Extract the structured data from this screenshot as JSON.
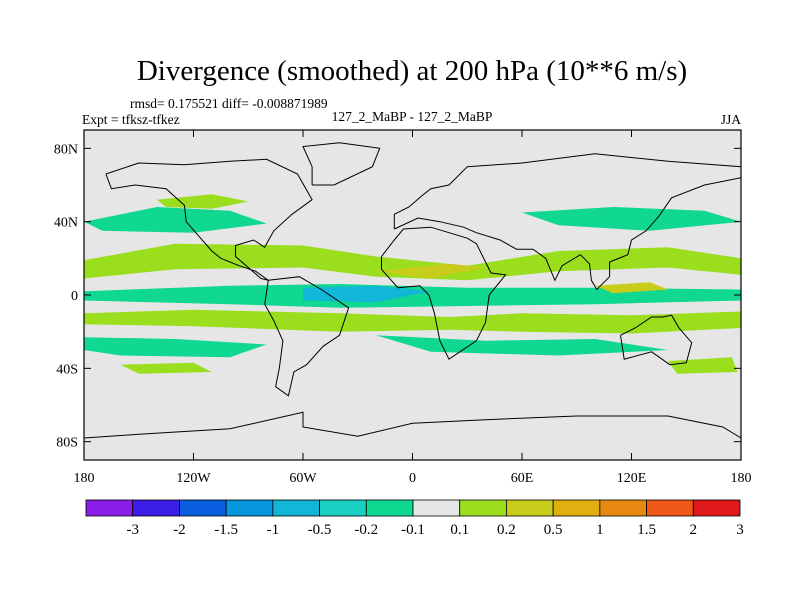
{
  "chart_data": {
    "type": "heatmap",
    "title": "Divergence (smoothed) at 200 hPa (10**6 m/s)",
    "stats_line": "rmsd= 0.175521 diff= -0.008871989",
    "expt_line": "Expt = tfksz-tfkez",
    "center_label": "127_2_MaBP - 127_2_MaBP",
    "season_label": "JJA",
    "x_tick_labels": [
      "180",
      "120W",
      "60W",
      "0",
      "60E",
      "120E",
      "180"
    ],
    "x_tick_values": [
      -180,
      -120,
      -60,
      0,
      60,
      120,
      180
    ],
    "y_tick_labels": [
      "80N",
      "40N",
      "0",
      "40S",
      "80S"
    ],
    "y_tick_values": [
      80,
      40,
      0,
      -40,
      -80
    ],
    "xlim": [
      -180,
      180
    ],
    "ylim": [
      -90,
      90
    ],
    "colorbar": {
      "labels": [
        "-3",
        "-2",
        "-1.5",
        "-1",
        "-0.5",
        "-0.2",
        "-0.1",
        "0.1",
        "0.2",
        "0.5",
        "1",
        "1.5",
        "2",
        "3"
      ],
      "colors": [
        "#8a1ee6",
        "#3a1ee6",
        "#0a5ee0",
        "#0896dc",
        "#12b6d6",
        "#18cfc2",
        "#10d890",
        "#e6e6e6",
        "#9ade1e",
        "#c8cc1a",
        "#e0b010",
        "#e88a12",
        "#f05818",
        "#e01a1a"
      ]
    },
    "regions": [
      {
        "level": "-0.1",
        "points": [
          [
            -180,
            2
          ],
          [
            -100,
            5
          ],
          [
            -40,
            6
          ],
          [
            30,
            4
          ],
          [
            100,
            4
          ],
          [
            180,
            3
          ],
          [
            180,
            -3
          ],
          [
            100,
            -5
          ],
          [
            30,
            -6
          ],
          [
            -40,
            -7
          ],
          [
            -100,
            -5
          ],
          [
            -180,
            -3
          ]
        ]
      },
      {
        "level": "-0.5",
        "points": [
          [
            -60,
            4
          ],
          [
            -20,
            5
          ],
          [
            10,
            2
          ],
          [
            -20,
            -4
          ],
          [
            -60,
            -3
          ]
        ]
      },
      {
        "level": "0.2",
        "points": [
          [
            -180,
            19
          ],
          [
            -130,
            28
          ],
          [
            -60,
            27
          ],
          [
            -20,
            21
          ],
          [
            30,
            16
          ],
          [
            80,
            24
          ],
          [
            140,
            26
          ],
          [
            180,
            20
          ],
          [
            180,
            11
          ],
          [
            140,
            15
          ],
          [
            80,
            13
          ],
          [
            30,
            8
          ],
          [
            -20,
            10
          ],
          [
            -60,
            15
          ],
          [
            -130,
            14
          ],
          [
            -180,
            9
          ]
        ]
      },
      {
        "level": "-0.1",
        "points": [
          [
            -180,
            40
          ],
          [
            -140,
            48
          ],
          [
            -100,
            46
          ],
          [
            -80,
            39
          ],
          [
            -120,
            34
          ],
          [
            -170,
            35
          ]
        ]
      },
      {
        "level": "0.2",
        "points": [
          [
            -140,
            52
          ],
          [
            -110,
            55
          ],
          [
            -90,
            51
          ],
          [
            -110,
            47
          ],
          [
            -135,
            48
          ]
        ]
      },
      {
        "level": "-0.1",
        "points": [
          [
            60,
            45
          ],
          [
            110,
            48
          ],
          [
            160,
            46
          ],
          [
            180,
            40
          ],
          [
            130,
            35
          ],
          [
            80,
            38
          ]
        ]
      },
      {
        "level": "0.2",
        "points": [
          [
            -180,
            -10
          ],
          [
            -120,
            -8
          ],
          [
            -40,
            -10
          ],
          [
            20,
            -12
          ],
          [
            60,
            -10
          ],
          [
            120,
            -11
          ],
          [
            180,
            -9
          ],
          [
            180,
            -18
          ],
          [
            120,
            -21
          ],
          [
            60,
            -20
          ],
          [
            20,
            -19
          ],
          [
            -40,
            -20
          ],
          [
            -120,
            -17
          ],
          [
            -180,
            -16
          ]
        ]
      },
      {
        "level": "-0.1",
        "points": [
          [
            -180,
            -23
          ],
          [
            -130,
            -24
          ],
          [
            -80,
            -27
          ],
          [
            -100,
            -34
          ],
          [
            -160,
            -33
          ],
          [
            -180,
            -30
          ]
        ]
      },
      {
        "level": "-0.1",
        "points": [
          [
            -20,
            -22
          ],
          [
            40,
            -25
          ],
          [
            100,
            -24
          ],
          [
            140,
            -30
          ],
          [
            80,
            -33
          ],
          [
            10,
            -31
          ]
        ]
      },
      {
        "level": "0.2",
        "points": [
          [
            -160,
            -38
          ],
          [
            -120,
            -37
          ],
          [
            -110,
            -42
          ],
          [
            -150,
            -43
          ]
        ]
      },
      {
        "level": "0.2",
        "points": [
          [
            140,
            -36
          ],
          [
            175,
            -34
          ],
          [
            178,
            -42
          ],
          [
            145,
            -43
          ]
        ]
      },
      {
        "level": "0.5",
        "points": [
          [
            -20,
            13
          ],
          [
            20,
            17
          ],
          [
            40,
            15
          ],
          [
            10,
            9
          ]
        ]
      },
      {
        "level": "0.5",
        "points": [
          [
            100,
            5
          ],
          [
            130,
            7
          ],
          [
            140,
            3
          ],
          [
            110,
            1
          ]
        ]
      }
    ],
    "coastlines": [
      {
        "name": "north-america",
        "points": [
          [
            -168,
            66
          ],
          [
            -150,
            72
          ],
          [
            -125,
            71
          ],
          [
            -100,
            73
          ],
          [
            -80,
            74
          ],
          [
            -63,
            66
          ],
          [
            -55,
            52
          ],
          [
            -66,
            44
          ],
          [
            -76,
            35
          ],
          [
            -81,
            26
          ],
          [
            -87,
            30
          ],
          [
            -97,
            27
          ],
          [
            -97,
            21
          ],
          [
            -90,
            15
          ],
          [
            -83,
            9
          ],
          [
            -79,
            8
          ],
          [
            -86,
            13
          ],
          [
            -95,
            16
          ],
          [
            -105,
            20
          ],
          [
            -110,
            24
          ],
          [
            -117,
            32
          ],
          [
            -124,
            40
          ],
          [
            -125,
            49
          ],
          [
            -135,
            58
          ],
          [
            -152,
            60
          ],
          [
            -165,
            58
          ],
          [
            -168,
            66
          ]
        ]
      },
      {
        "name": "south-america",
        "points": [
          [
            -79,
            8
          ],
          [
            -62,
            10
          ],
          [
            -50,
            3
          ],
          [
            -35,
            -7
          ],
          [
            -40,
            -22
          ],
          [
            -49,
            -28
          ],
          [
            -58,
            -38
          ],
          [
            -65,
            -42
          ],
          [
            -68,
            -55
          ],
          [
            -75,
            -50
          ],
          [
            -73,
            -40
          ],
          [
            -71,
            -25
          ],
          [
            -76,
            -14
          ],
          [
            -81,
            -5
          ],
          [
            -79,
            8
          ]
        ]
      },
      {
        "name": "greenland",
        "points": [
          [
            -55,
            60
          ],
          [
            -43,
            60
          ],
          [
            -22,
            70
          ],
          [
            -18,
            80
          ],
          [
            -40,
            83
          ],
          [
            -60,
            81
          ],
          [
            -55,
            70
          ],
          [
            -55,
            60
          ]
        ]
      },
      {
        "name": "eurasia",
        "points": [
          [
            -10,
            36
          ],
          [
            -10,
            44
          ],
          [
            -2,
            48
          ],
          [
            5,
            54
          ],
          [
            10,
            58
          ],
          [
            20,
            60
          ],
          [
            30,
            70
          ],
          [
            60,
            72
          ],
          [
            100,
            77
          ],
          [
            140,
            73
          ],
          [
            180,
            70
          ],
          [
            180,
            64
          ],
          [
            160,
            60
          ],
          [
            142,
            53
          ],
          [
            135,
            43
          ],
          [
            128,
            35
          ],
          [
            120,
            30
          ],
          [
            118,
            22
          ],
          [
            108,
            18
          ],
          [
            108,
            10
          ],
          [
            101,
            3
          ],
          [
            98,
            8
          ],
          [
            97,
            17
          ],
          [
            92,
            22
          ],
          [
            82,
            16
          ],
          [
            78,
            8
          ],
          [
            73,
            20
          ],
          [
            66,
            25
          ],
          [
            57,
            25
          ],
          [
            48,
            30
          ],
          [
            35,
            34
          ],
          [
            28,
            37
          ],
          [
            15,
            40
          ],
          [
            3,
            42
          ],
          [
            -10,
            36
          ]
        ]
      },
      {
        "name": "africa",
        "points": [
          [
            -17,
            21
          ],
          [
            -10,
            30
          ],
          [
            -5,
            36
          ],
          [
            10,
            37
          ],
          [
            30,
            31
          ],
          [
            35,
            28
          ],
          [
            43,
            12
          ],
          [
            51,
            11
          ],
          [
            42,
            0
          ],
          [
            40,
            -15
          ],
          [
            35,
            -25
          ],
          [
            20,
            -35
          ],
          [
            15,
            -25
          ],
          [
            12,
            -10
          ],
          [
            9,
            0
          ],
          [
            4,
            5
          ],
          [
            -8,
            4
          ],
          [
            -17,
            14
          ],
          [
            -17,
            21
          ]
        ]
      },
      {
        "name": "australia",
        "points": [
          [
            114,
            -22
          ],
          [
            122,
            -18
          ],
          [
            131,
            -12
          ],
          [
            137,
            -12
          ],
          [
            142,
            -11
          ],
          [
            146,
            -18
          ],
          [
            153,
            -26
          ],
          [
            150,
            -37
          ],
          [
            141,
            -38
          ],
          [
            131,
            -31
          ],
          [
            116,
            -35
          ],
          [
            114,
            -22
          ]
        ]
      },
      {
        "name": "antarctica",
        "points": [
          [
            -180,
            -78
          ],
          [
            -150,
            -76
          ],
          [
            -100,
            -73
          ],
          [
            -60,
            -64
          ],
          [
            -60,
            -72
          ],
          [
            -30,
            -77
          ],
          [
            0,
            -70
          ],
          [
            40,
            -68
          ],
          [
            90,
            -66
          ],
          [
            140,
            -66
          ],
          [
            170,
            -72
          ],
          [
            180,
            -78
          ]
        ]
      }
    ]
  }
}
